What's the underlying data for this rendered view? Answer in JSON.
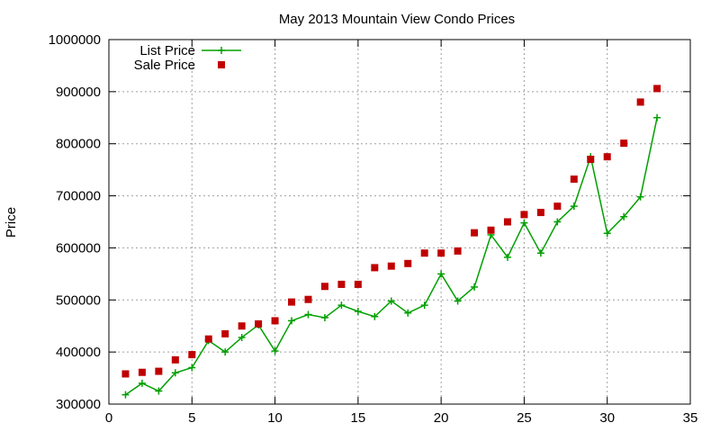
{
  "chart_data": {
    "type": "line",
    "title": "May 2013 Mountain View Condo Prices",
    "xlabel": "",
    "ylabel": "Price",
    "xlim": [
      0,
      35
    ],
    "ylim": [
      300000,
      1000000
    ],
    "xticks": [
      "0",
      "5",
      "10",
      "15",
      "20",
      "25",
      "30",
      "35"
    ],
    "yticks": [
      "300000",
      "400000",
      "500000",
      "600000",
      "700000",
      "800000",
      "900000",
      "1000000"
    ],
    "grid": true,
    "legend_position": "top-left",
    "x": [
      1,
      2,
      3,
      4,
      5,
      6,
      7,
      8,
      9,
      10,
      11,
      12,
      13,
      14,
      15,
      16,
      17,
      18,
      19,
      20,
      21,
      22,
      23,
      24,
      25,
      26,
      27,
      28,
      29,
      30,
      31,
      32,
      33
    ],
    "series": [
      {
        "name": "List Price",
        "style": "line+cross",
        "color": "#00a000",
        "values": [
          318000,
          340000,
          325000,
          360000,
          370000,
          422000,
          400000,
          428000,
          452000,
          402000,
          460000,
          472000,
          466000,
          490000,
          478000,
          468000,
          498000,
          475000,
          490000,
          550000,
          498000,
          525000,
          625000,
          582000,
          648000,
          590000,
          650000,
          680000,
          775000,
          628000,
          660000,
          698000,
          850000
        ]
      },
      {
        "name": "Sale Price",
        "style": "square",
        "color": "#c00000",
        "values": [
          358000,
          361000,
          363000,
          385000,
          395000,
          425000,
          435000,
          450000,
          454000,
          460000,
          496000,
          501000,
          526000,
          530000,
          530000,
          562000,
          565000,
          570000,
          590000,
          590000,
          594000,
          629000,
          634000,
          650000,
          664000,
          668000,
          680000,
          732000,
          770000,
          775000,
          801000,
          880000,
          906000
        ]
      }
    ]
  }
}
